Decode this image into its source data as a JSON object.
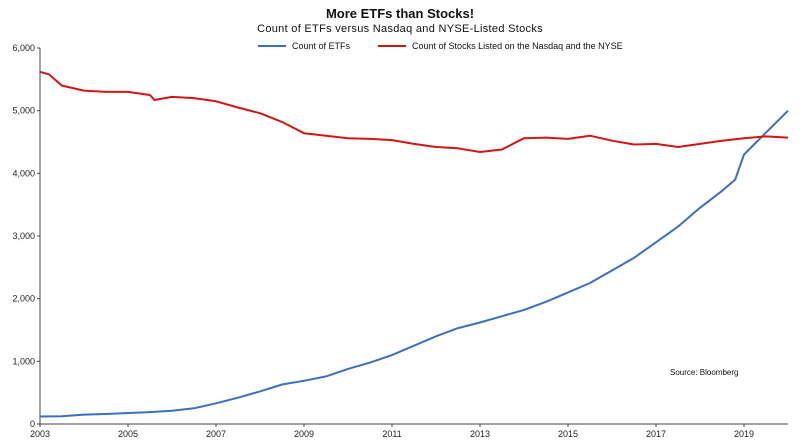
{
  "chart_data": {
    "type": "line",
    "title": "More ETFs than Stocks!",
    "subtitle": "Count of  ETFs versus  Nasdaq and  NYSE-Listed Stocks",
    "source": "Source:  Bloomberg",
    "ylim": [
      0,
      6000
    ],
    "xlim": [
      2003,
      2020
    ],
    "y_ticks": [
      "0",
      "1,000",
      "2,000",
      "3,000",
      "4,000",
      "5,000",
      "6,000"
    ],
    "x_ticks": [
      "2003",
      "2005",
      "2007",
      "2009",
      "2011",
      "2013",
      "2015",
      "2017",
      "2019"
    ],
    "legend_placement": "top-center",
    "grid": false,
    "series": [
      {
        "name": "Count of ETFs",
        "color": "#3a6fc4",
        "points": [
          [
            2003,
            120
          ],
          [
            2003.5,
            125
          ],
          [
            2004,
            150
          ],
          [
            2004.5,
            160
          ],
          [
            2005,
            175
          ],
          [
            2005.5,
            190
          ],
          [
            2006,
            210
          ],
          [
            2006.5,
            250
          ],
          [
            2007,
            330
          ],
          [
            2007.5,
            420
          ],
          [
            2008,
            520
          ],
          [
            2008.5,
            630
          ],
          [
            2009,
            690
          ],
          [
            2009.5,
            760
          ],
          [
            2010,
            880
          ],
          [
            2010.5,
            980
          ],
          [
            2011,
            1100
          ],
          [
            2011.5,
            1250
          ],
          [
            2012,
            1400
          ],
          [
            2012.5,
            1530
          ],
          [
            2013,
            1620
          ],
          [
            2013.5,
            1720
          ],
          [
            2014,
            1820
          ],
          [
            2014.5,
            1950
          ],
          [
            2015,
            2100
          ],
          [
            2015.5,
            2250
          ],
          [
            2016,
            2450
          ],
          [
            2016.5,
            2650
          ],
          [
            2017,
            2900
          ],
          [
            2017.5,
            3150
          ],
          [
            2018,
            3450
          ],
          [
            2018.5,
            3720
          ],
          [
            2018.8,
            3900
          ],
          [
            2019,
            4300
          ],
          [
            2019.5,
            4650
          ],
          [
            2020,
            5000
          ]
        ]
      },
      {
        "name": "Count of Stocks Listed on the Nasdaq and the NYSE",
        "color": "#d41515",
        "points": [
          [
            2003,
            5620
          ],
          [
            2003.2,
            5580
          ],
          [
            2003.5,
            5400
          ],
          [
            2004,
            5320
          ],
          [
            2004.5,
            5300
          ],
          [
            2005,
            5300
          ],
          [
            2005.5,
            5250
          ],
          [
            2005.6,
            5170
          ],
          [
            2006,
            5220
          ],
          [
            2006.5,
            5200
          ],
          [
            2007,
            5150
          ],
          [
            2007.5,
            5050
          ],
          [
            2008,
            4960
          ],
          [
            2008.5,
            4820
          ],
          [
            2009,
            4640
          ],
          [
            2009.5,
            4600
          ],
          [
            2010,
            4560
          ],
          [
            2010.5,
            4550
          ],
          [
            2011,
            4530
          ],
          [
            2011.5,
            4470
          ],
          [
            2012,
            4420
          ],
          [
            2012.5,
            4400
          ],
          [
            2013,
            4340
          ],
          [
            2013.5,
            4380
          ],
          [
            2014,
            4560
          ],
          [
            2014.5,
            4570
          ],
          [
            2015,
            4550
          ],
          [
            2015.5,
            4600
          ],
          [
            2016,
            4520
          ],
          [
            2016.5,
            4460
          ],
          [
            2017,
            4470
          ],
          [
            2017.5,
            4420
          ],
          [
            2018,
            4470
          ],
          [
            2018.5,
            4520
          ],
          [
            2019,
            4560
          ],
          [
            2019.5,
            4590
          ],
          [
            2020,
            4570
          ]
        ]
      }
    ]
  }
}
